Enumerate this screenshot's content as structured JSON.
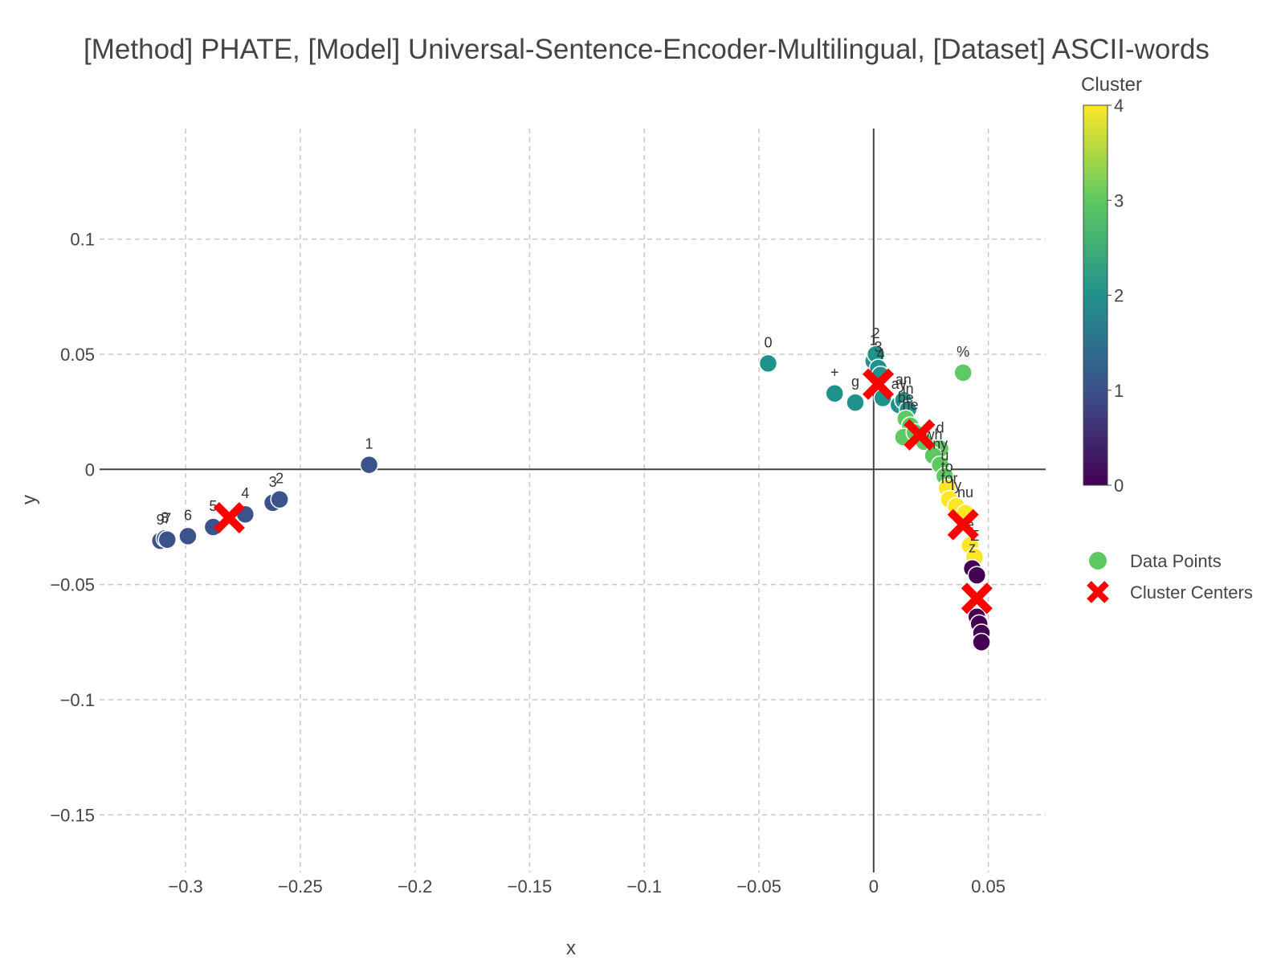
{
  "chart_data": {
    "type": "scatter",
    "title": "[Method] PHATE, [Model] Universal-Sentence-Encoder-Multilingual, [Dataset] ASCII-words",
    "xlabel": "x",
    "ylabel": "y",
    "xlim": [
      -0.3375,
      0.075
    ],
    "ylim": [
      -0.175,
      0.148
    ],
    "x_ticks": [
      -0.3,
      -0.25,
      -0.2,
      -0.15,
      -0.1,
      -0.05,
      0,
      0.05
    ],
    "x_tick_labels": [
      "−0.3",
      "−0.25",
      "−0.2",
      "−0.15",
      "−0.1",
      "−0.05",
      "0",
      "0.05"
    ],
    "y_ticks": [
      0.1,
      0.05,
      0,
      -0.05,
      -0.1,
      -0.15
    ],
    "y_tick_labels": [
      "0.1",
      "0.05",
      "0",
      "−0.05",
      "−0.1",
      "−0.15"
    ],
    "grid": true,
    "zero_lines": true,
    "colorscale": [
      "#440154",
      "#3b528b",
      "#21918c",
      "#5ec962",
      "#fde725"
    ],
    "colorbar": {
      "title": "Cluster",
      "min": 0,
      "max": 4,
      "ticks": [
        0,
        1,
        2,
        3,
        4
      ],
      "tick_labels": [
        "0",
        "1",
        "2",
        "3",
        "4"
      ]
    },
    "legend": {
      "position": "right",
      "items": [
        {
          "name": "Data Points",
          "color": "#5ec962",
          "symbol": "circle"
        },
        {
          "name": "Cluster Centers",
          "color": "#ff0000",
          "symbol": "x"
        }
      ]
    },
    "series": [
      {
        "name": "Data Points",
        "points": [
          {
            "x": -0.311,
            "y": -0.031,
            "c": 1,
            "label": "9"
          },
          {
            "x": -0.309,
            "y": -0.03,
            "c": 1,
            "label": "8"
          },
          {
            "x": -0.308,
            "y": -0.0305,
            "c": 1,
            "label": "7"
          },
          {
            "x": -0.299,
            "y": -0.029,
            "c": 1,
            "label": "6"
          },
          {
            "x": -0.288,
            "y": -0.025,
            "c": 1,
            "label": "5"
          },
          {
            "x": -0.274,
            "y": -0.0195,
            "c": 1,
            "label": "4"
          },
          {
            "x": -0.262,
            "y": -0.0145,
            "c": 1,
            "label": "3"
          },
          {
            "x": -0.259,
            "y": -0.013,
            "c": 1,
            "label": "2"
          },
          {
            "x": -0.22,
            "y": 0.002,
            "c": 1,
            "label": "1"
          },
          {
            "x": -0.046,
            "y": 0.046,
            "c": 2,
            "label": "0"
          },
          {
            "x": -0.017,
            "y": 0.033,
            "c": 2,
            "label": "+"
          },
          {
            "x": -0.008,
            "y": 0.029,
            "c": 2,
            "label": "g"
          },
          {
            "x": 0.0,
            "y": 0.047,
            "c": 2,
            "label": "1"
          },
          {
            "x": 0.001,
            "y": 0.05,
            "c": 2,
            "label": "2"
          },
          {
            "x": 0.002,
            "y": 0.044,
            "c": 2,
            "label": "3"
          },
          {
            "x": 0.003,
            "y": 0.041,
            "c": 2,
            "label": "4"
          },
          {
            "x": 0.004,
            "y": 0.031,
            "c": 2,
            "label": ""
          },
          {
            "x": 0.011,
            "y": 0.028,
            "c": 2,
            "label": "ay"
          },
          {
            "x": 0.013,
            "y": 0.03,
            "c": 2,
            "label": "an"
          },
          {
            "x": 0.015,
            "y": 0.026,
            "c": 2,
            "label": "in"
          },
          {
            "x": 0.014,
            "y": 0.022,
            "c": 3,
            "label": "be"
          },
          {
            "x": 0.016,
            "y": 0.019,
            "c": 3,
            "label": "he"
          },
          {
            "x": 0.013,
            "y": 0.014,
            "c": 3,
            "label": ""
          },
          {
            "x": 0.018,
            "y": 0.016,
            "c": 3,
            "label": ""
          },
          {
            "x": 0.022,
            "y": 0.012,
            "c": 3,
            "label": ""
          },
          {
            "x": 0.029,
            "y": 0.009,
            "c": 3,
            "label": "d"
          },
          {
            "x": 0.026,
            "y": 0.006,
            "c": 3,
            "label": "wh"
          },
          {
            "x": 0.029,
            "y": 0.002,
            "c": 3,
            "label": "ny"
          },
          {
            "x": 0.031,
            "y": -0.003,
            "c": 3,
            "label": "u"
          },
          {
            "x": 0.039,
            "y": 0.042,
            "c": 3,
            "label": "%"
          },
          {
            "x": 0.032,
            "y": -0.008,
            "c": 4,
            "label": "to"
          },
          {
            "x": 0.033,
            "y": -0.013,
            "c": 4,
            "label": "for"
          },
          {
            "x": 0.036,
            "y": -0.016,
            "c": 4,
            "label": "ly"
          },
          {
            "x": 0.04,
            "y": -0.019,
            "c": 4,
            "label": "nu"
          },
          {
            "x": 0.042,
            "y": -0.033,
            "c": 4,
            "label": "e"
          },
          {
            "x": 0.044,
            "y": -0.038,
            "c": 4,
            "label": "E"
          },
          {
            "x": 0.043,
            "y": -0.043,
            "c": 0,
            "label": "z"
          },
          {
            "x": 0.045,
            "y": -0.046,
            "c": 0,
            "label": ""
          },
          {
            "x": 0.045,
            "y": -0.064,
            "c": 0,
            "label": ""
          },
          {
            "x": 0.046,
            "y": -0.067,
            "c": 0,
            "label": ""
          },
          {
            "x": 0.047,
            "y": -0.071,
            "c": 0,
            "label": ""
          },
          {
            "x": 0.047,
            "y": -0.075,
            "c": 0,
            "label": ""
          }
        ]
      },
      {
        "name": "Cluster Centers",
        "points": [
          {
            "x": -0.281,
            "y": -0.021,
            "label": ""
          },
          {
            "x": 0.002,
            "y": 0.037,
            "label": ""
          },
          {
            "x": 0.02,
            "y": 0.015,
            "label": ""
          },
          {
            "x": 0.039,
            "y": -0.024,
            "label": ""
          },
          {
            "x": 0.045,
            "y": -0.056,
            "label": ""
          }
        ]
      }
    ]
  }
}
